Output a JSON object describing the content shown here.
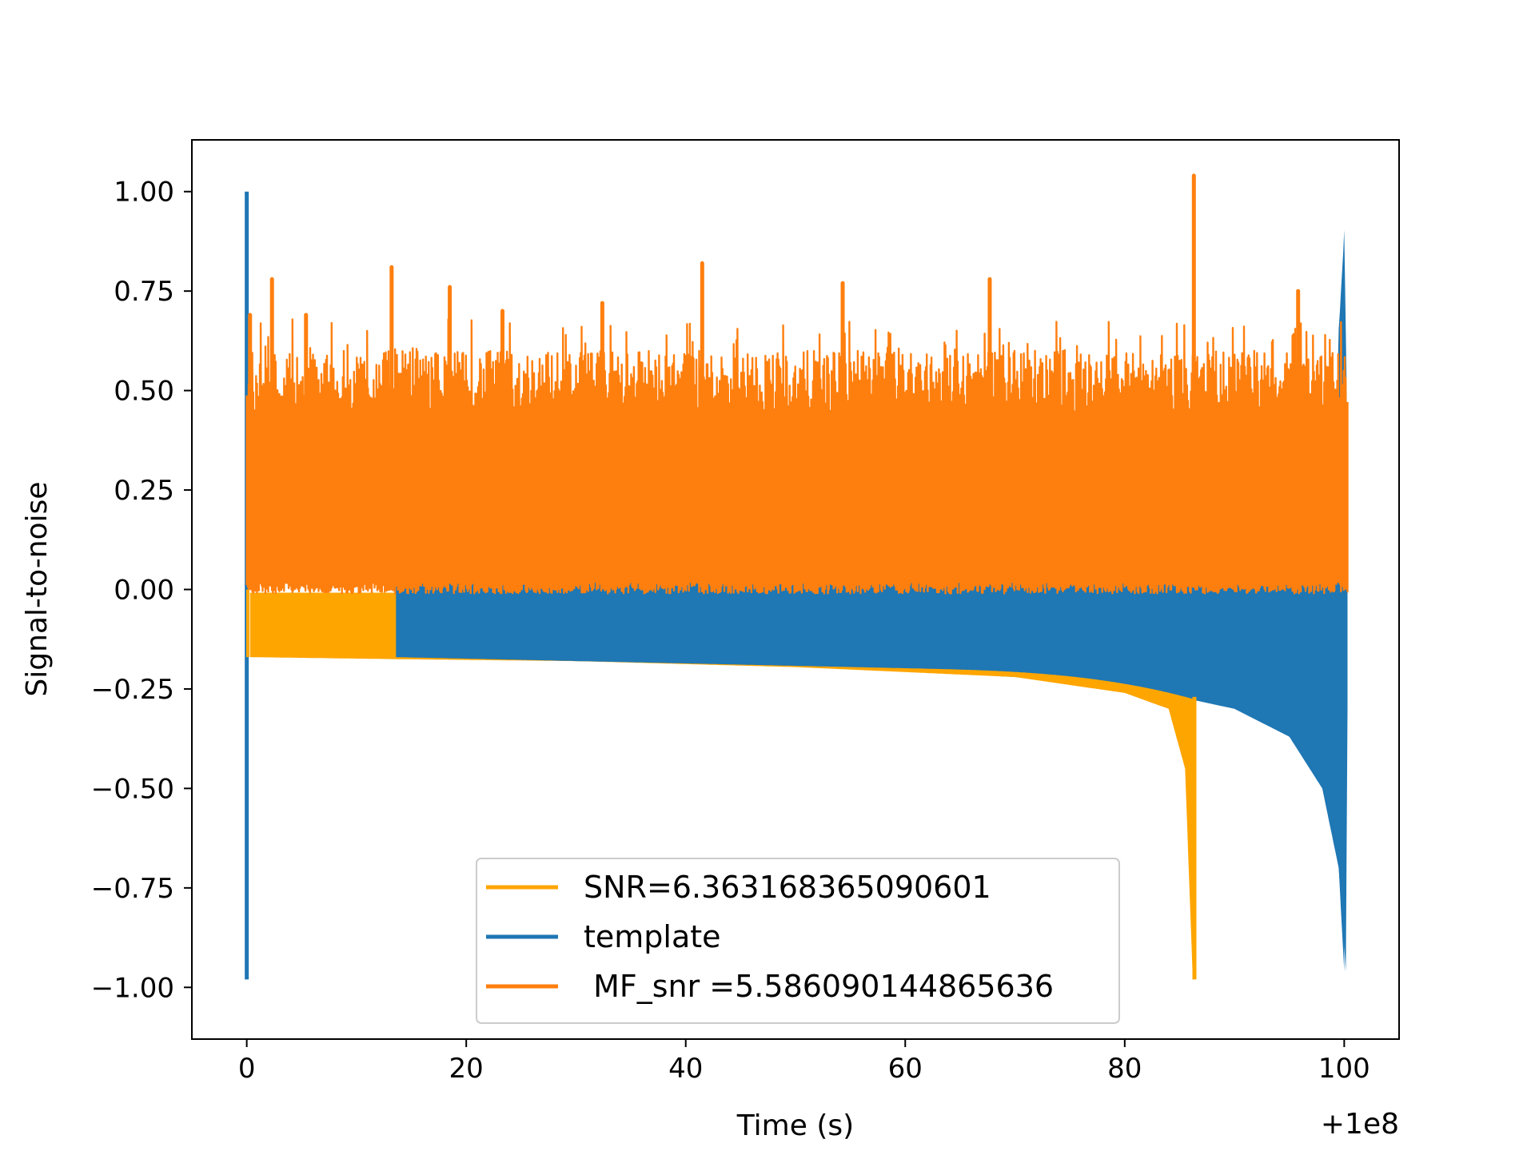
{
  "chart_data": {
    "type": "line",
    "title": "",
    "xlabel": "Time (s)",
    "ylabel": "Signal-to-noise",
    "x_offset_label": "+1e8",
    "xlim": [
      -5,
      105
    ],
    "ylim": [
      -1.13,
      1.13
    ],
    "grid": false,
    "legend_position": "lower-center",
    "x_ticks": [
      0,
      20,
      40,
      60,
      80,
      100
    ],
    "x_tick_labels": [
      "0",
      "20",
      "40",
      "60",
      "80",
      "100"
    ],
    "y_ticks": [
      1.0,
      0.75,
      0.5,
      0.25,
      0.0,
      -0.25,
      -0.5,
      -0.75,
      -1.0
    ],
    "y_tick_labels": [
      "1.00",
      "0.75",
      "0.50",
      "0.25",
      "0.00",
      "−0.25",
      "−0.50",
      "−0.75",
      "−1.00"
    ],
    "series": [
      {
        "name": "SNR=6.363168365090601",
        "color": "#ffa500",
        "x_range": [
          0,
          86.4
        ],
        "peak": {
          "x": 0,
          "y": 1.0
        },
        "upper_envelope": {
          "x": [
            0,
            0.5,
            13.5,
            13.6,
            30,
            60,
            86.3
          ],
          "y": [
            0.0,
            -0.01,
            -0.005,
            0.0,
            0.0,
            0.0,
            0.0
          ]
        },
        "lower_envelope": {
          "x": [
            0.3,
            13.5,
            30,
            50,
            70,
            80,
            84,
            85.5,
            86.2,
            86.4
          ],
          "y": [
            -0.17,
            -0.175,
            -0.18,
            -0.195,
            -0.22,
            -0.26,
            -0.3,
            -0.45,
            -0.98,
            -0.3
          ]
        }
      },
      {
        "name": "template",
        "color": "#1f77b4",
        "x_range": [
          0,
          100.3
        ],
        "peak": {
          "x": 0,
          "y": 1.0
        },
        "trough": {
          "x": 0,
          "y": -0.98
        },
        "upper_envelope": {
          "x": [
            0,
            13.5,
            30,
            60,
            90,
            99,
            99.5,
            100,
            100.3
          ],
          "y": [
            0.02,
            0.03,
            0.04,
            0.05,
            0.05,
            0.1,
            0.65,
            0.9,
            0.4
          ]
        },
        "lower_envelope": {
          "x": [
            13.5,
            30,
            50,
            70,
            85,
            90,
            95,
            98,
            99.5,
            100
          ],
          "y": [
            -0.17,
            -0.18,
            -0.19,
            -0.22,
            -0.27,
            -0.3,
            -0.37,
            -0.5,
            -0.7,
            -0.96
          ]
        }
      },
      {
        "name": " MF_snr =5.586090144865636",
        "color": "#ff7f0e",
        "x_range": [
          0,
          100.3
        ],
        "base": 0.03,
        "typical_max": 0.6,
        "spikes": [
          {
            "x": 0.3,
            "y": 0.69
          },
          {
            "x": 2.3,
            "y": 0.78
          },
          {
            "x": 5.4,
            "y": 0.69
          },
          {
            "x": 13.2,
            "y": 0.81
          },
          {
            "x": 18.5,
            "y": 0.76
          },
          {
            "x": 23.3,
            "y": 0.7
          },
          {
            "x": 32.4,
            "y": 0.72
          },
          {
            "x": 41.5,
            "y": 0.82
          },
          {
            "x": 54.3,
            "y": 0.77
          },
          {
            "x": 67.7,
            "y": 0.78
          },
          {
            "x": 86.3,
            "y": 1.04
          },
          {
            "x": 95.8,
            "y": 0.75
          }
        ]
      }
    ]
  }
}
